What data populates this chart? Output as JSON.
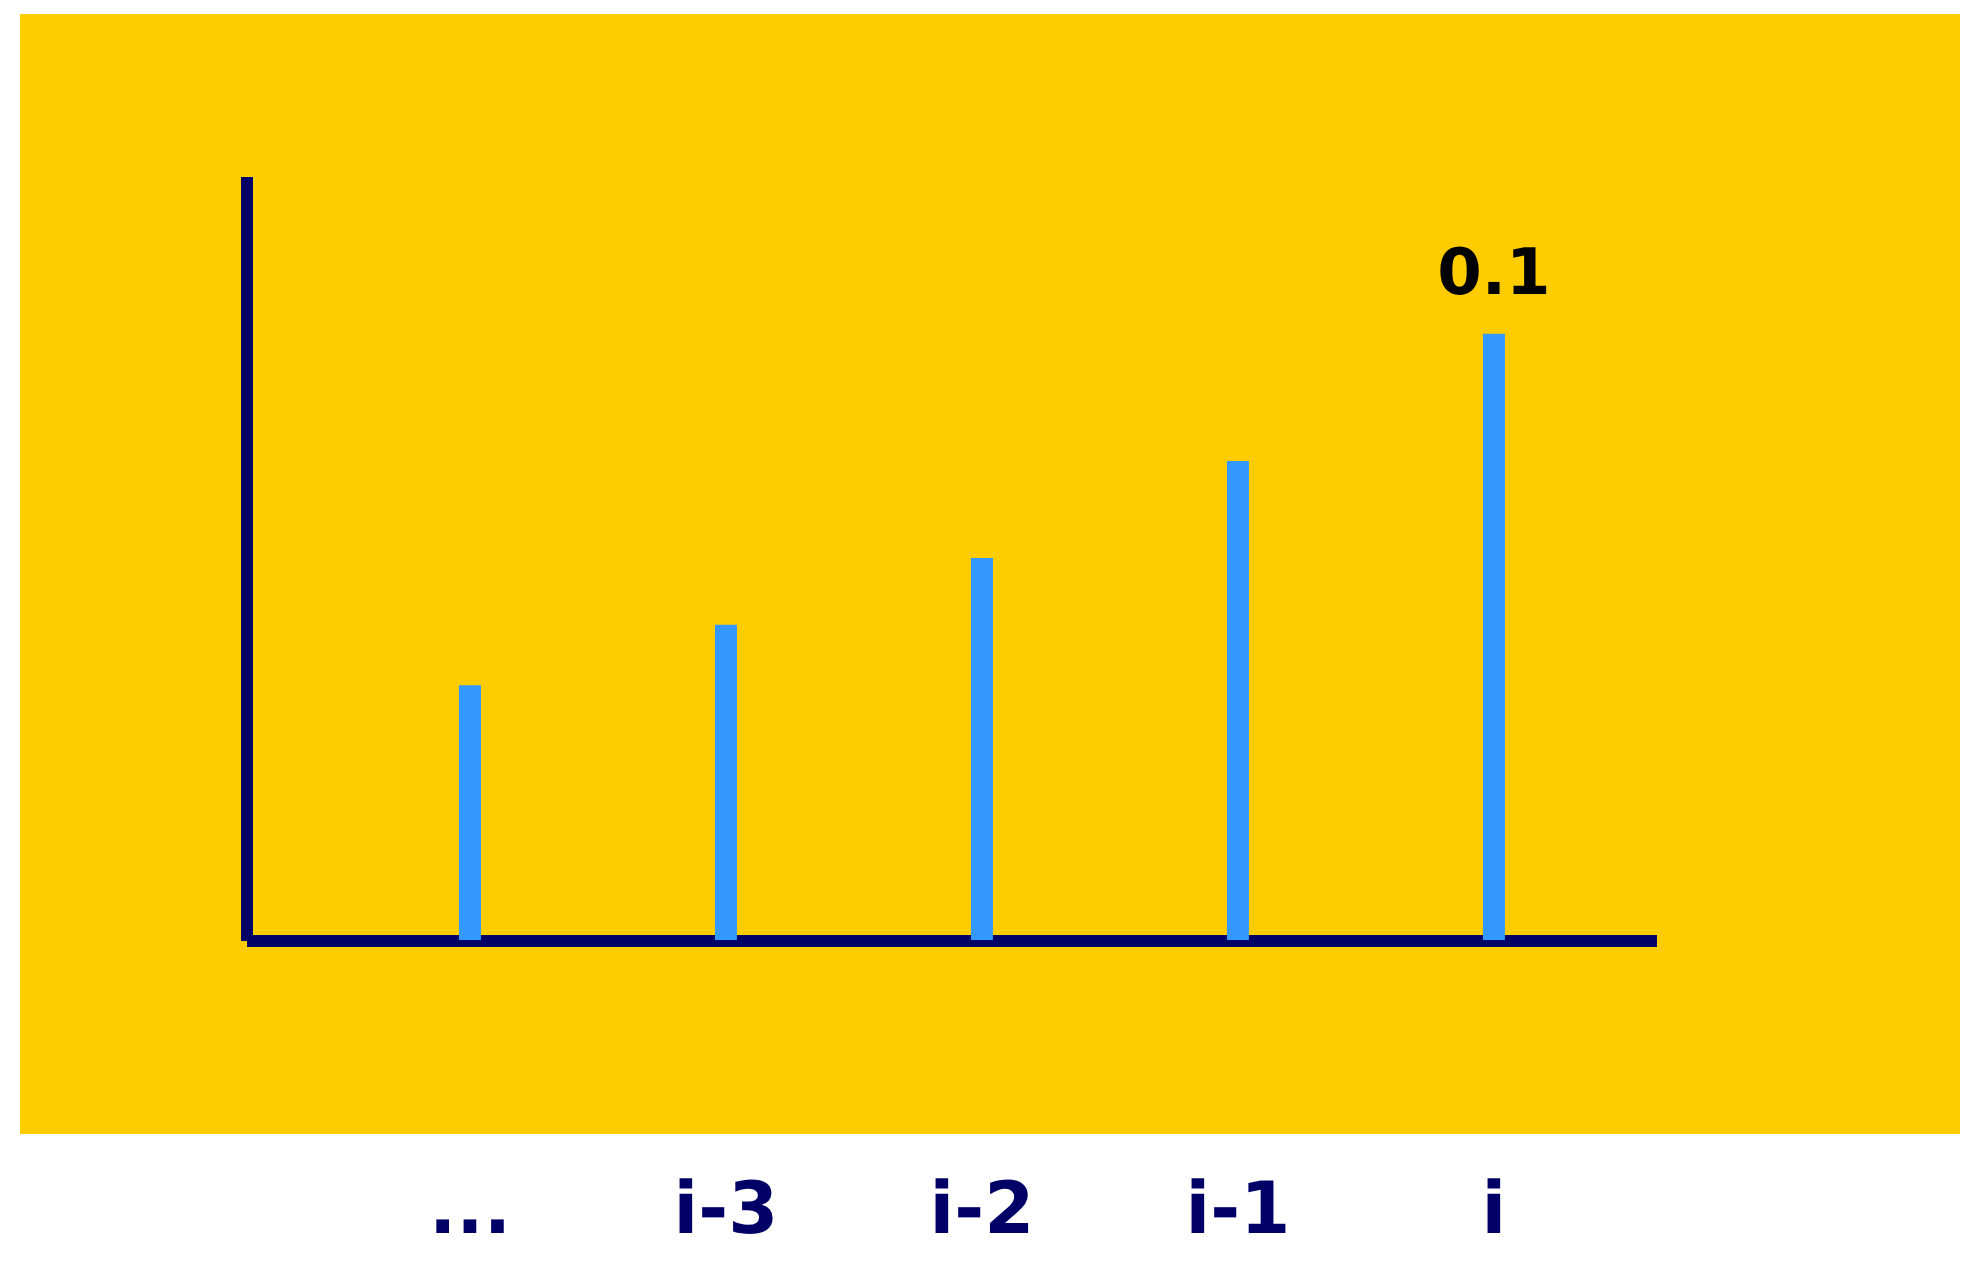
{
  "chart_data": {
    "type": "bar",
    "categories": [
      "...",
      "i-3",
      "i-2",
      "i-1",
      "i"
    ],
    "values": [
      0.042,
      0.052,
      0.063,
      0.079,
      0.1
    ],
    "value_labels": [
      null,
      null,
      null,
      null,
      "0.1"
    ],
    "ylim": [
      0,
      0.126
    ],
    "tick_labels": "x",
    "color": "#3399ff"
  }
}
